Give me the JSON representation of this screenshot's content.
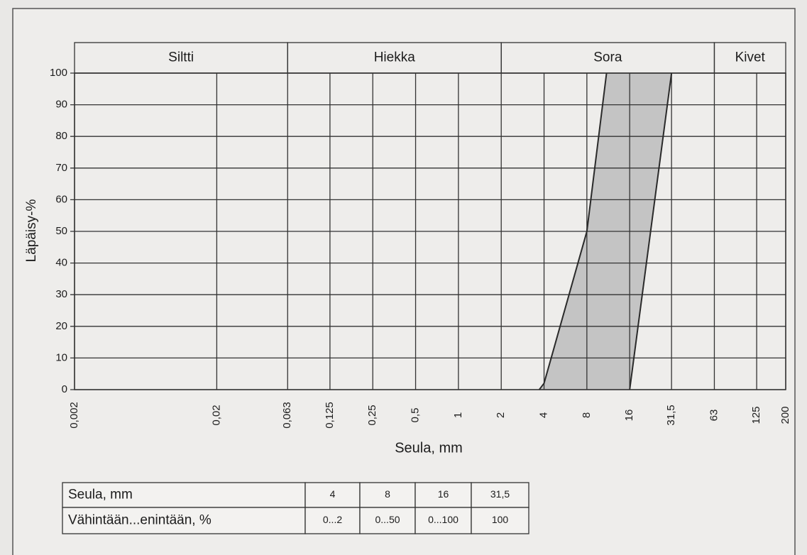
{
  "chart_data": {
    "type": "envelope",
    "ylabel": "Läpäisy-%",
    "xlabel": "Seula, mm",
    "xscale": "log",
    "grid": true,
    "xlim": [
      0.002,
      200
    ],
    "ylim": [
      0,
      100
    ],
    "yticks": [
      0,
      10,
      20,
      30,
      40,
      50,
      60,
      70,
      80,
      90,
      100
    ],
    "xticks": [
      {
        "value": 0.002,
        "label": "0,002"
      },
      {
        "value": 0.02,
        "label": "0,02"
      },
      {
        "value": 0.063,
        "label": "0,063"
      },
      {
        "value": 0.125,
        "label": "0,125"
      },
      {
        "value": 0.25,
        "label": "0,25"
      },
      {
        "value": 0.5,
        "label": "0,5"
      },
      1,
      2,
      4,
      8,
      16,
      {
        "value": 31.5,
        "label": "31,5"
      },
      63,
      125,
      200
    ],
    "zones": [
      {
        "label": "Siltti",
        "from": 0.002,
        "to": 0.063
      },
      {
        "label": "Hiekka",
        "from": 0.063,
        "to": 2
      },
      {
        "label": "Sora",
        "from": 2,
        "to": 63
      },
      {
        "label": "Kivet",
        "from": 63,
        "to": 200
      }
    ],
    "fill": "#c4c4c4",
    "color": "#2a2a2a",
    "series": [
      {
        "x": [
          3.7,
          4,
          8,
          11
        ],
        "values": [
          0,
          2,
          50,
          100
        ]
      },
      {
        "x": [
          16,
          31.5
        ],
        "values": [
          0,
          100
        ]
      }
    ]
  },
  "table": {
    "rows": [
      [
        "Seula, mm",
        "4",
        "8",
        "16",
        "31,5"
      ],
      [
        "Vähintään...enintään, %",
        "0...2",
        "0...50",
        "0...100",
        "100"
      ]
    ]
  }
}
